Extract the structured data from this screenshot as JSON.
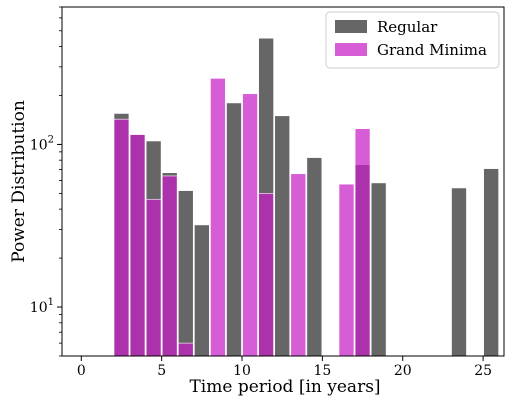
{
  "chart_data": {
    "type": "bar",
    "xlabel": "Time period [in years]",
    "ylabel": "Power Distribution",
    "xlim": [
      -1.2,
      26.3
    ],
    "ylim": [
      5,
      700
    ],
    "y_scale": "log",
    "x_ticks": [
      0,
      5,
      10,
      15,
      20,
      25
    ],
    "x_tick_labels": [
      "0",
      "5",
      "10",
      "15",
      "20",
      "25"
    ],
    "y_major_ticks": [
      10,
      100
    ],
    "y_major_tick_labels": [
      "10^1",
      "10^2"
    ],
    "bar_width": 0.93,
    "legend": {
      "placement": "top-right"
    },
    "grid": false,
    "series": [
      {
        "name": "Regular",
        "color": "#666666",
        "opacity": 1,
        "x": [
          2.5,
          3.5,
          4.5,
          5.5,
          6.5,
          7.5,
          9.5,
          11.5,
          12.5,
          14.5,
          17.5,
          18.5,
          23.5,
          25.5
        ],
        "values": [
          155,
          115,
          105,
          67,
          52,
          32,
          180,
          450,
          150,
          83,
          75,
          58,
          54,
          71
        ]
      },
      {
        "name": "Grand Minima",
        "color": "#c71ec7",
        "opacity": 0.72,
        "x": [
          2.5,
          3.5,
          4.5,
          5.5,
          6.5,
          8.5,
          10.5,
          11.5,
          13.5,
          16.5,
          17.5
        ],
        "values": [
          143,
          115,
          46,
          64,
          6,
          255,
          205,
          50,
          66,
          57,
          125
        ]
      }
    ]
  }
}
